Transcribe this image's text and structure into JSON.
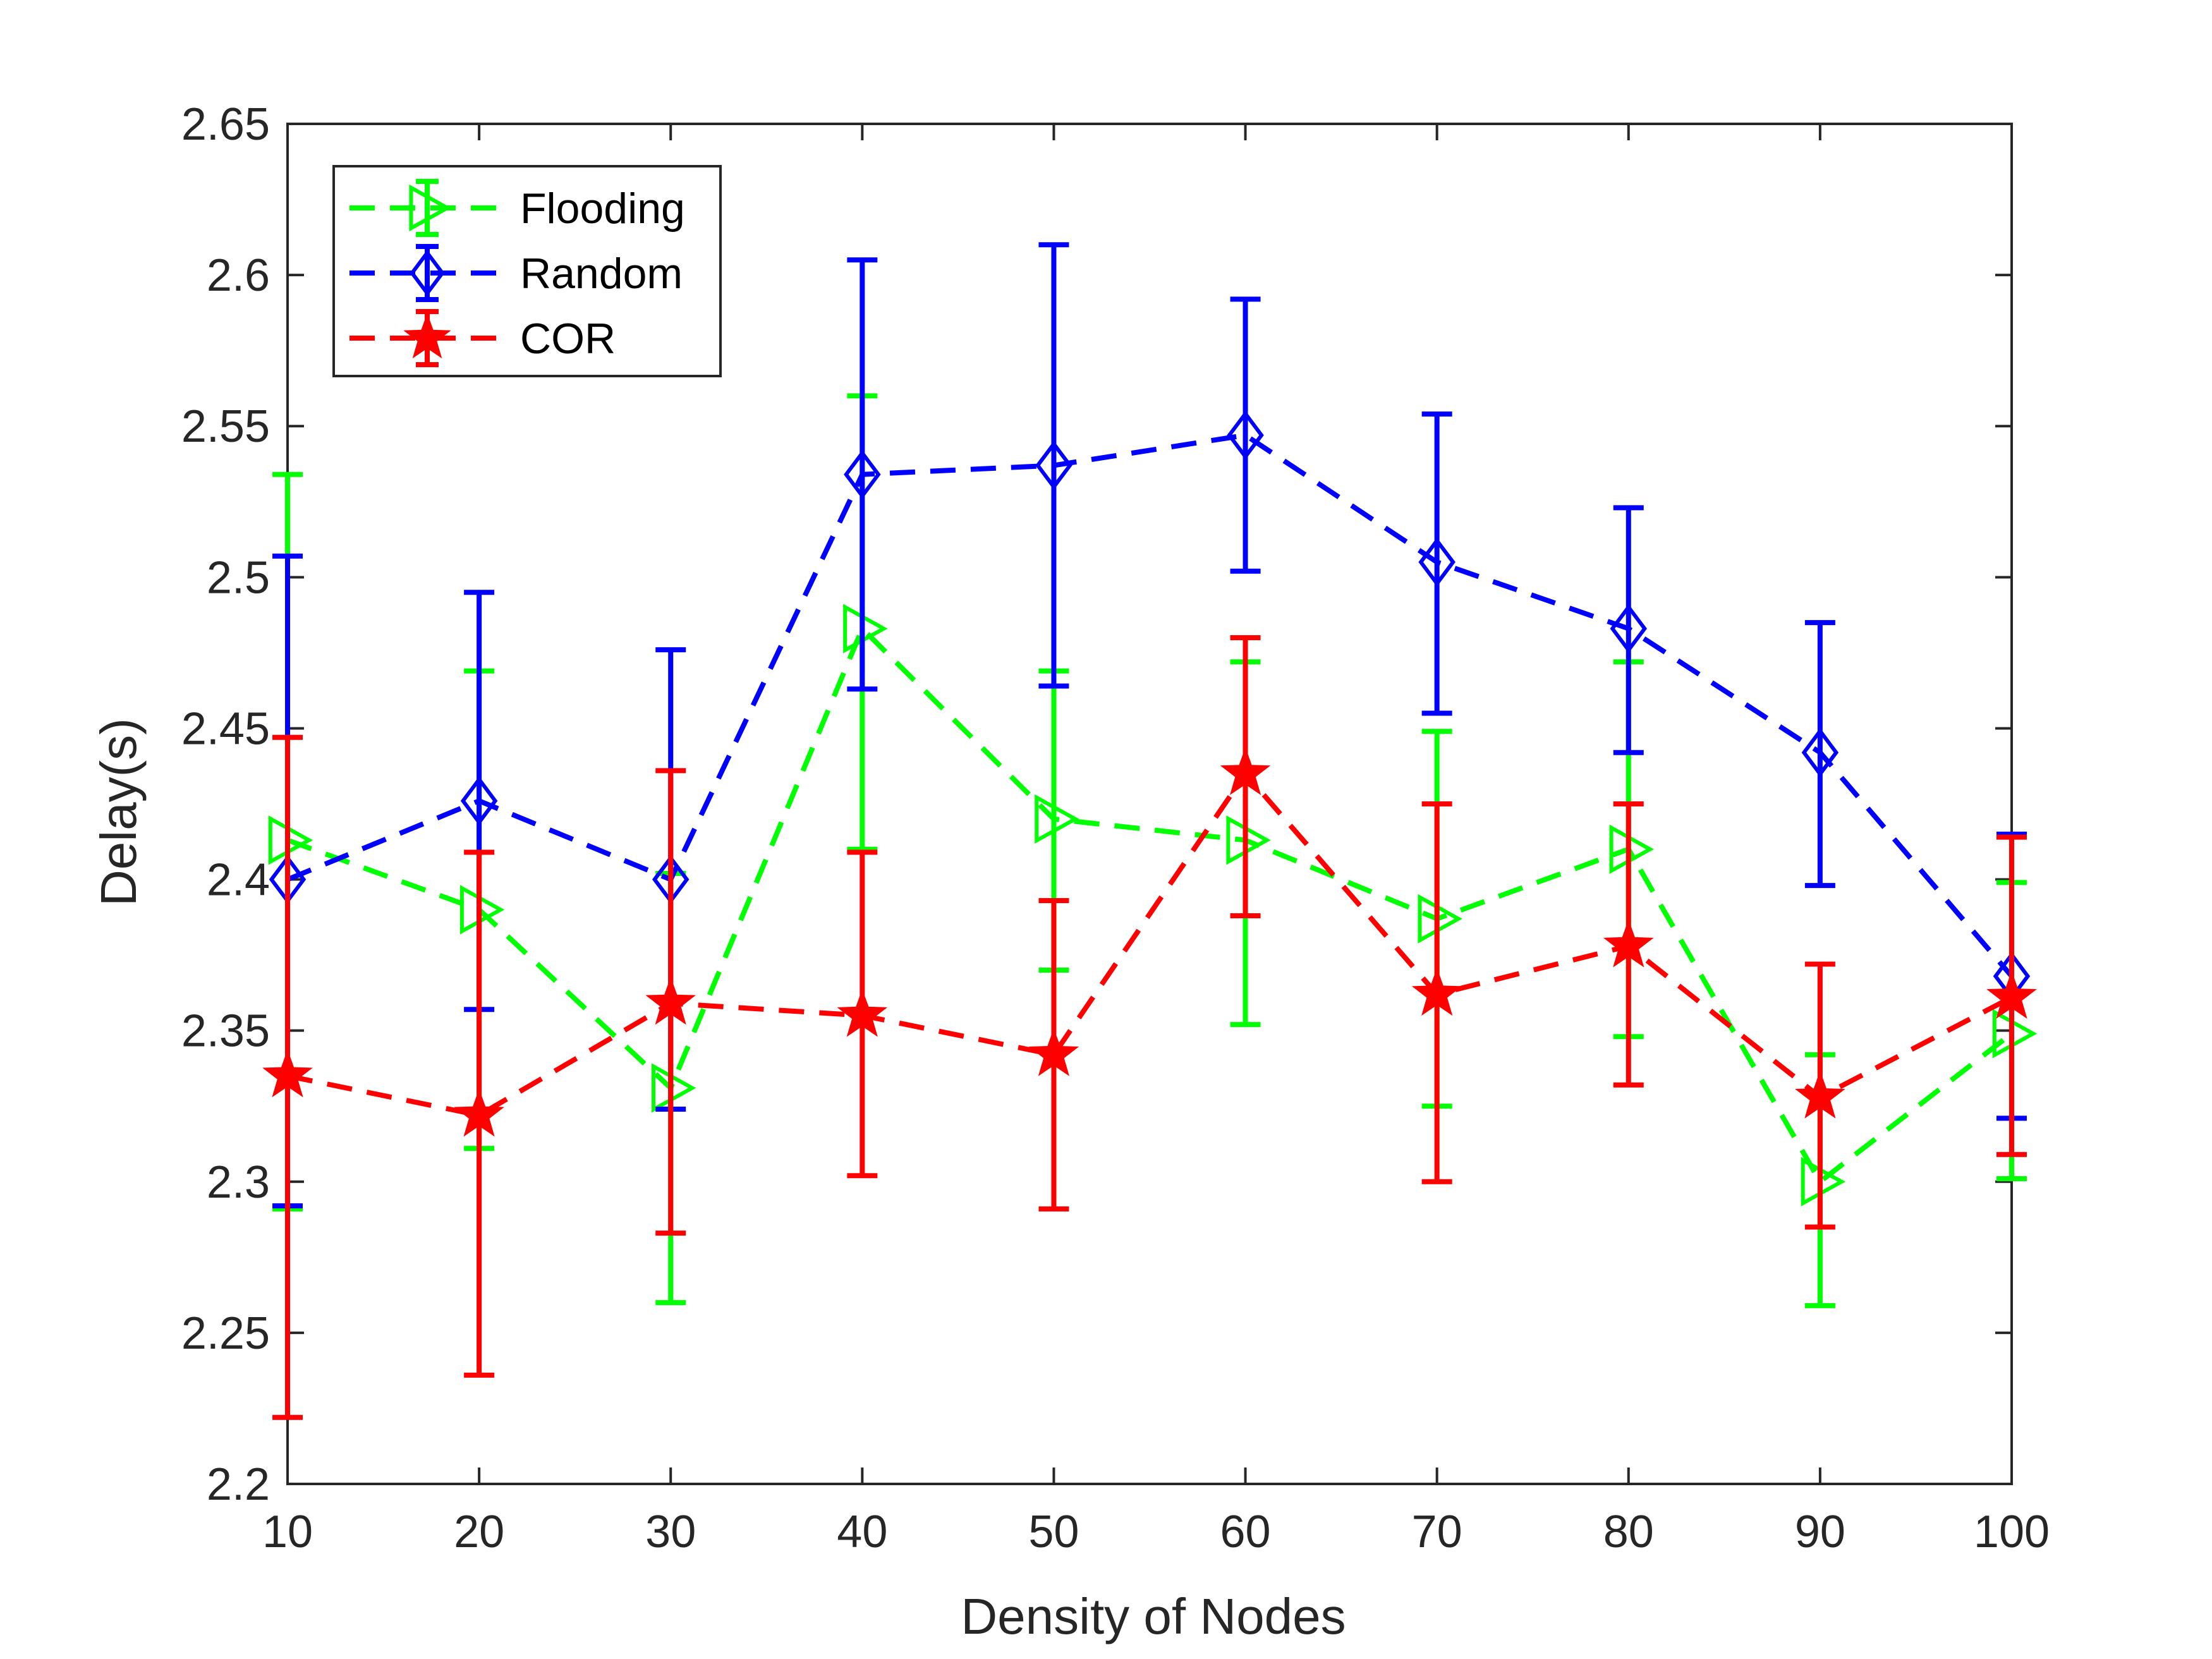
{
  "chart_data": {
    "type": "line",
    "title": "",
    "xlabel": "Density of Nodes",
    "ylabel": "Delay(s)",
    "x": [
      10,
      20,
      30,
      40,
      50,
      60,
      70,
      80,
      90,
      100
    ],
    "xlim": [
      10,
      100
    ],
    "ylim": [
      2.2,
      2.65
    ],
    "xticks": [
      "10",
      "20",
      "30",
      "40",
      "50",
      "60",
      "70",
      "80",
      "90",
      "100"
    ],
    "yticks": [
      "2.2",
      "2.25",
      "2.3",
      "2.35",
      "2.4",
      "2.45",
      "2.5",
      "2.55",
      "2.6",
      "2.65"
    ],
    "grid": false,
    "legend_position": "top-left",
    "series": [
      {
        "name": "Flooding",
        "color": "#00ff00",
        "marker": "triangle-right",
        "values": [
          2.413,
          2.39,
          2.331,
          2.483,
          2.42,
          2.413,
          2.387,
          2.41,
          2.3,
          2.349
        ],
        "error_low": [
          2.291,
          2.311,
          2.26,
          2.41,
          2.37,
          2.352,
          2.325,
          2.348,
          2.259,
          2.301
        ],
        "error_high": [
          2.534,
          2.469,
          2.402,
          2.56,
          2.469,
          2.472,
          2.449,
          2.472,
          2.342,
          2.399
        ]
      },
      {
        "name": "Random",
        "color": "#0000ff",
        "marker": "diamond",
        "values": [
          2.4,
          2.426,
          2.4,
          2.534,
          2.537,
          2.547,
          2.505,
          2.483,
          2.442,
          2.368
        ],
        "error_low": [
          2.292,
          2.357,
          2.324,
          2.463,
          2.464,
          2.502,
          2.455,
          2.442,
          2.398,
          2.321
        ],
        "error_high": [
          2.507,
          2.495,
          2.476,
          2.605,
          2.61,
          2.592,
          2.554,
          2.523,
          2.485,
          2.415
        ]
      },
      {
        "name": "COR",
        "color": "#ff0000",
        "marker": "star",
        "values": [
          2.335,
          2.322,
          2.359,
          2.355,
          2.342,
          2.435,
          2.362,
          2.378,
          2.328,
          2.361
        ],
        "error_low": [
          2.222,
          2.236,
          2.283,
          2.302,
          2.291,
          2.388,
          2.3,
          2.332,
          2.285,
          2.309
        ],
        "error_high": [
          2.447,
          2.409,
          2.436,
          2.409,
          2.393,
          2.48,
          2.425,
          2.425,
          2.372,
          2.414
        ]
      }
    ]
  }
}
